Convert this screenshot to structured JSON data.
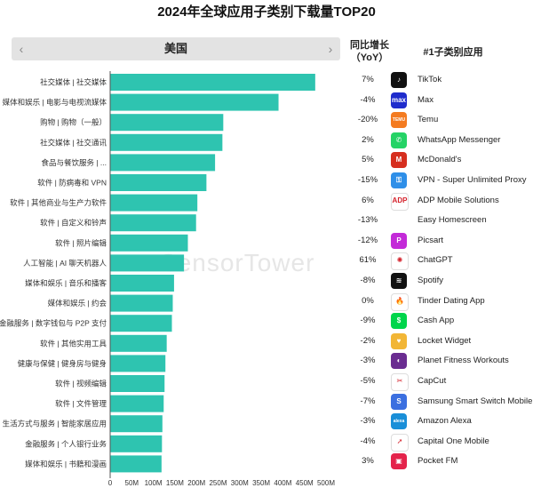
{
  "title": "2024年全球应用子类别下载量TOP20",
  "selector": {
    "value": "美国",
    "prev_icon": "chevron-left-icon",
    "next_icon": "chevron-right-icon"
  },
  "headers": {
    "yoy": "同比增长（YoY）",
    "app": "#1子类别应用"
  },
  "watermark": "SensorTower",
  "chart_data": {
    "type": "bar",
    "orientation": "horizontal",
    "categories": [
      "社交媒体 | 社交媒体",
      "媒体和娱乐 | 电影与电视流媒体",
      "购物 | 购物（一般）",
      "社交媒体 | 社交通讯",
      "食品与餐饮服务 | ...",
      "软件 | 防病毒和 VPN",
      "软件 | 其他商业与生产力软件",
      "软件 | 自定义和铃声",
      "软件 | 照片编辑",
      "人工智能 | AI 聊天机器人",
      "媒体和娱乐 | 音乐和播客",
      "媒体和娱乐 | 约会",
      "金融服务 | 数字钱包与 P2P 支付",
      "软件 | 其他实用工具",
      "健康与保健 | 健身房与健身",
      "软件 | 视频编辑",
      "软件 | 文件管理",
      "生活方式与服务 | 智能家居应用",
      "金融服务 | 个人银行业务",
      "媒体和娱乐 | 书籍和漫画"
    ],
    "values": [
      475,
      390,
      262,
      260,
      243,
      223,
      202,
      199,
      180,
      171,
      148,
      145,
      143,
      131,
      128,
      126,
      124,
      121,
      120,
      119
    ],
    "xlim": [
      0,
      500
    ],
    "xticks": [
      "0",
      "50M",
      "100M",
      "150M",
      "200M",
      "250M",
      "300M",
      "350M",
      "400M",
      "450M",
      "500M"
    ],
    "bar_color": "#2ec4b0",
    "grid": false
  },
  "rows": [
    {
      "yoy": "7%",
      "app": "TikTok",
      "icon": "tiktok-icon",
      "color": "#111111",
      "glyph": "♪"
    },
    {
      "yoy": "-4%",
      "app": "Max",
      "icon": "max-icon",
      "color": "#1f2ccc",
      "glyph": "max"
    },
    {
      "yoy": "-20%",
      "app": "Temu",
      "icon": "temu-icon",
      "color": "#f47b20",
      "glyph": "TEMU"
    },
    {
      "yoy": "2%",
      "app": "WhatsApp Messenger",
      "icon": "whatsapp-icon",
      "color": "#25d366",
      "glyph": "✆"
    },
    {
      "yoy": "5%",
      "app": "McDonald's",
      "icon": "mcdonalds-icon",
      "color": "#d62f1f",
      "glyph": "M"
    },
    {
      "yoy": "-15%",
      "app": "VPN - Super Unlimited Proxy",
      "icon": "vpn-key-icon",
      "color": "#2f8fe8",
      "glyph": "⚿"
    },
    {
      "yoy": "6%",
      "app": "ADP Mobile Solutions",
      "icon": "adp-icon",
      "color": "#ffffff",
      "glyph": "ADP"
    },
    {
      "yoy": "-13%",
      "app": "Easy Homescreen",
      "icon": "",
      "color": "",
      "glyph": ""
    },
    {
      "yoy": "-12%",
      "app": "Picsart",
      "icon": "picsart-icon",
      "color": "#c32ad8",
      "glyph": "P"
    },
    {
      "yoy": "61%",
      "app": "ChatGPT",
      "icon": "chatgpt-icon",
      "color": "#ffffff",
      "glyph": "✺"
    },
    {
      "yoy": "-8%",
      "app": "Spotify",
      "icon": "spotify-icon",
      "color": "#111111",
      "glyph": "≋"
    },
    {
      "yoy": "0%",
      "app": "Tinder Dating App",
      "icon": "tinder-icon",
      "color": "#ffffff",
      "glyph": "🔥"
    },
    {
      "yoy": "-9%",
      "app": "Cash App",
      "icon": "cash-app-icon",
      "color": "#00d54b",
      "glyph": "$"
    },
    {
      "yoy": "-2%",
      "app": "Locket Widget",
      "icon": "locket-icon",
      "color": "#f2b636",
      "glyph": "♥"
    },
    {
      "yoy": "-3%",
      "app": "Planet Fitness Workouts",
      "icon": "planet-fitness-icon",
      "color": "#6a2c91",
      "glyph": "◐"
    },
    {
      "yoy": "-5%",
      "app": "CapCut",
      "icon": "capcut-icon",
      "color": "#ffffff",
      "glyph": "✂"
    },
    {
      "yoy": "-7%",
      "app": "Samsung Smart Switch Mobile",
      "icon": "smart-switch-icon",
      "color": "#3b6fe0",
      "glyph": "S"
    },
    {
      "yoy": "-3%",
      "app": "Amazon Alexa",
      "icon": "alexa-icon",
      "color": "#1a8fd8",
      "glyph": "alexa"
    },
    {
      "yoy": "-4%",
      "app": "Capital One Mobile",
      "icon": "capital-one-icon",
      "color": "#ffffff",
      "glyph": "➚"
    },
    {
      "yoy": "3%",
      "app": "Pocket FM",
      "icon": "pocket-fm-icon",
      "color": "#e4234b",
      "glyph": "▣"
    }
  ]
}
